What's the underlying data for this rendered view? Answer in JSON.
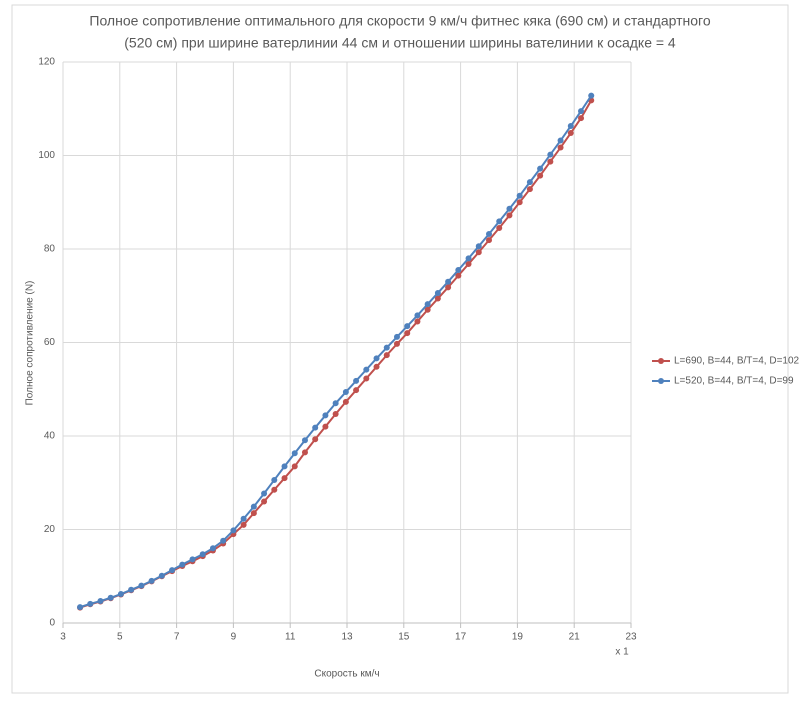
{
  "chart_data": {
    "type": "line",
    "title": [
      "Полное сопротивление оптимального для скорости 9 км/ч фитнес кяка (690 см) и стандартного",
      "(520 см) при ширине ватерлинии 44 см и отношении ширины вателинии к осадке = 4"
    ],
    "x_label": "Скорость км/ч",
    "y_label": "Полное сопротивление  (N)",
    "x_unit_note": "x 1",
    "x": [
      3.6,
      3.96,
      4.32,
      4.68,
      5.04,
      5.4,
      5.76,
      6.12,
      6.48,
      6.84,
      7.2,
      7.56,
      7.92,
      8.28,
      8.64,
      9.0,
      9.36,
      9.72,
      10.08,
      10.44,
      10.8,
      11.16,
      11.52,
      11.88,
      12.24,
      12.6,
      12.96,
      13.32,
      13.68,
      14.04,
      14.4,
      14.76,
      15.12,
      15.48,
      15.84,
      16.2,
      16.56,
      16.92,
      17.28,
      17.64,
      18.0,
      18.36,
      18.72,
      19.08,
      19.44,
      19.8,
      20.16,
      20.52,
      20.88,
      21.24,
      21.6
    ],
    "series": [
      {
        "name": "L=690, B=44, B/T=4, D=102",
        "color": "#c0504d",
        "values": [
          3.3,
          4.0,
          4.6,
          5.3,
          6.1,
          7.0,
          7.9,
          8.9,
          10.0,
          11.1,
          12.2,
          13.2,
          14.3,
          15.5,
          17.0,
          19.0,
          21.0,
          23.5,
          26.0,
          28.5,
          31.0,
          33.5,
          36.5,
          39.3,
          42.0,
          44.7,
          47.3,
          49.8,
          52.3,
          54.8,
          57.3,
          59.7,
          62.0,
          64.5,
          67.0,
          69.4,
          71.8,
          74.3,
          76.8,
          79.3,
          81.9,
          84.5,
          87.2,
          90.0,
          92.8,
          95.7,
          98.7,
          101.7,
          104.8,
          108.0,
          111.8
        ]
      },
      {
        "name": "L=520, B=44, B/T=4, D=99",
        "color": "#4f81bd",
        "values": [
          3.4,
          4.1,
          4.7,
          5.4,
          6.2,
          7.1,
          8.0,
          9.0,
          10.1,
          11.3,
          12.5,
          13.6,
          14.7,
          16.0,
          17.6,
          19.8,
          22.3,
          24.9,
          27.7,
          30.6,
          33.5,
          36.3,
          39.1,
          41.8,
          44.4,
          47.0,
          49.4,
          51.8,
          54.2,
          56.6,
          58.9,
          61.2,
          63.5,
          65.8,
          68.2,
          70.6,
          73.0,
          75.5,
          78.0,
          80.6,
          83.2,
          85.9,
          88.6,
          91.4,
          94.3,
          97.2,
          100.2,
          103.2,
          106.3,
          109.5,
          112.8
        ]
      }
    ],
    "xlim": [
      3,
      23
    ],
    "xticks": [
      3,
      5,
      7,
      9,
      11,
      13,
      15,
      17,
      19,
      21,
      23
    ],
    "ylim": [
      0,
      120
    ],
    "yticks": [
      0,
      20,
      40,
      60,
      80,
      100,
      120
    ],
    "grid": true,
    "legend": "right"
  }
}
